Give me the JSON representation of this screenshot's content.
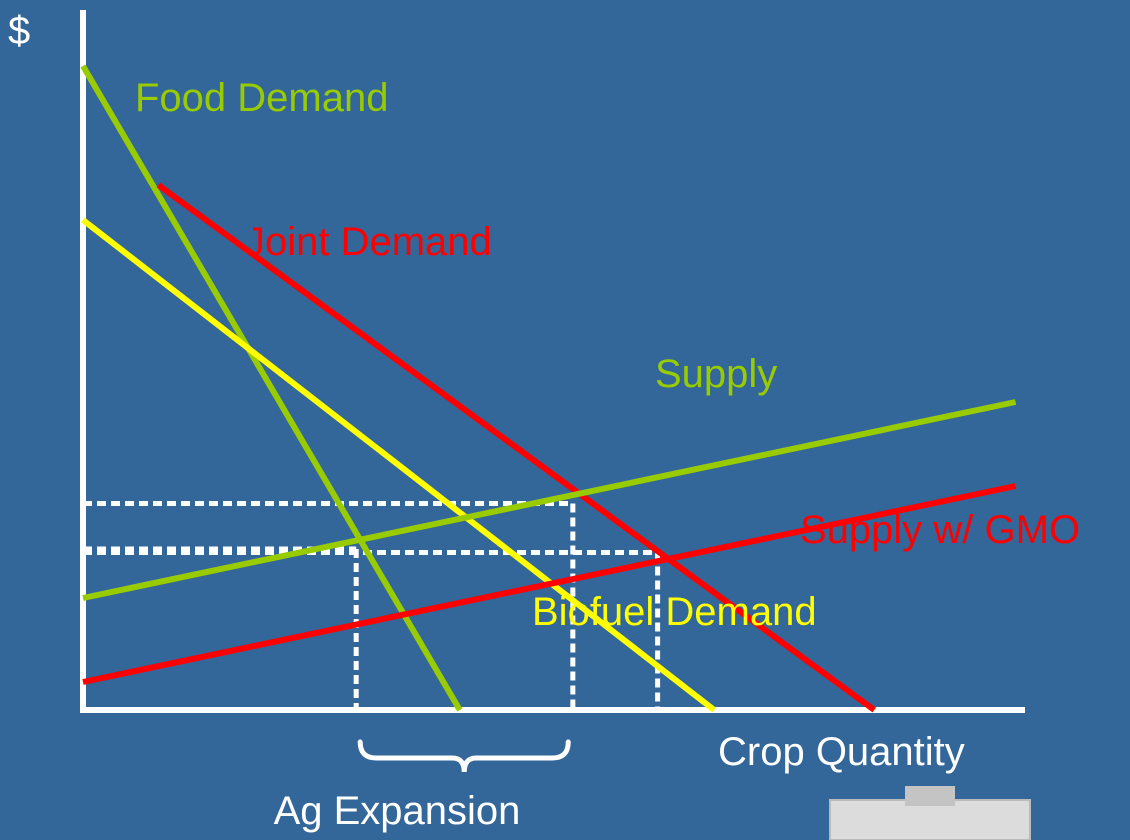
{
  "chart_data": {
    "type": "line",
    "title": "",
    "xlabel": "Crop Quantity",
    "ylabel": "$",
    "xlim": [
      0,
      10
    ],
    "ylim": [
      0,
      10
    ],
    "grid": false,
    "legend": "none",
    "series": [
      {
        "name": "Food Demand",
        "color": "#99cc00",
        "x": [
          0,
          4.0
        ],
        "y": [
          9.2,
          0
        ]
      },
      {
        "name": "Joint Demand",
        "color": "#ff0000",
        "x": [
          0.8,
          8.4
        ],
        "y": [
          7.5,
          0
        ]
      },
      {
        "name": "Biofuel Demand",
        "color": "#ffff00",
        "x": [
          0,
          6.7
        ],
        "y": [
          7.0,
          0
        ]
      },
      {
        "name": "Supply",
        "color": "#99cc00",
        "x": [
          0,
          9.9
        ],
        "y": [
          1.6,
          4.4
        ]
      },
      {
        "name": "Supply w/ GMO",
        "color": "#ff0000",
        "x": [
          0,
          9.9
        ],
        "y": [
          0.4,
          3.2
        ]
      }
    ],
    "reference_lines": {
      "color": "#ffffff",
      "price_levels": [
        2.95,
        2.3,
        2.25
      ],
      "quantity_levels": [
        2.9,
        5.2,
        6.1
      ]
    },
    "annotations": [
      {
        "text": "Ag Expansion",
        "bracket_x": [
          2.9,
          5.3
        ]
      }
    ]
  }
}
